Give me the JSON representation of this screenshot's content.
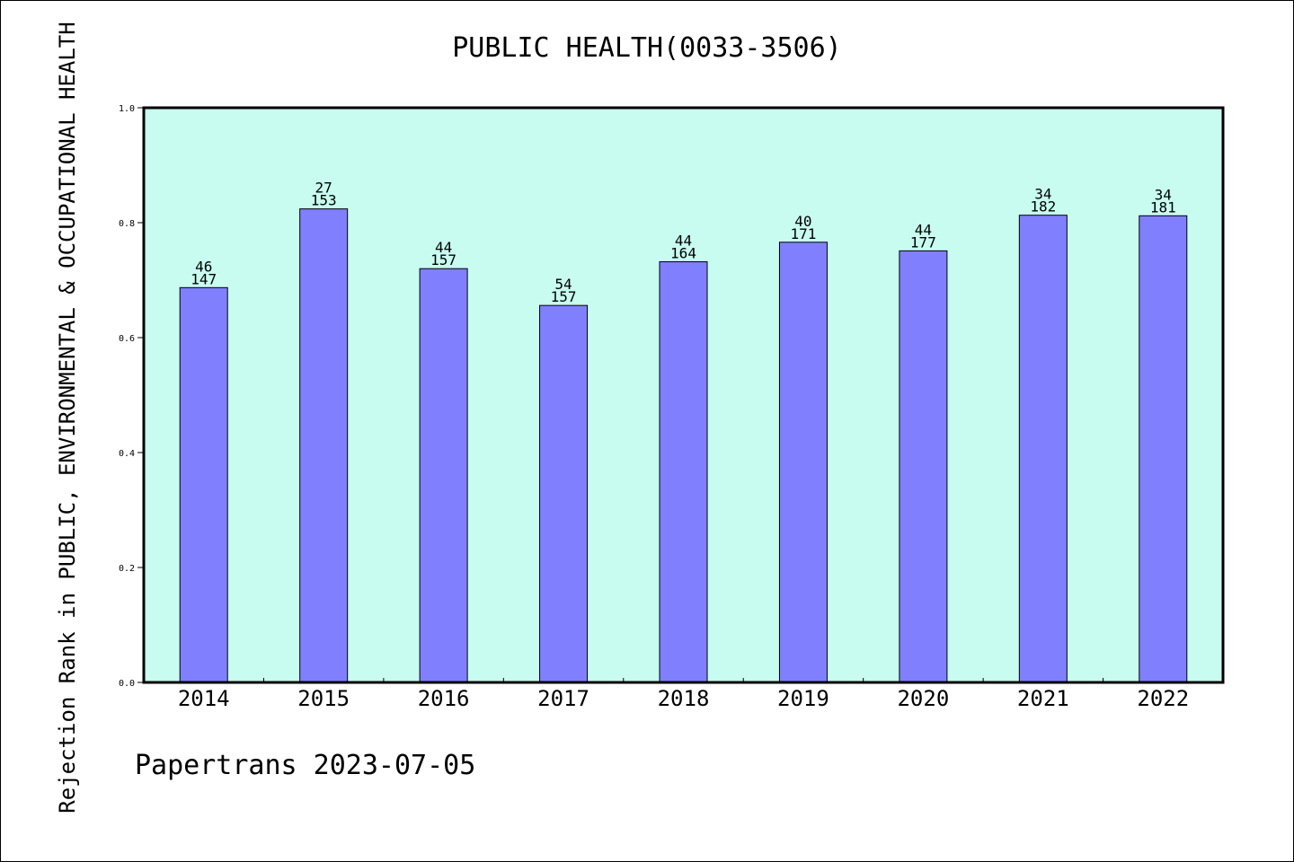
{
  "chart_data": {
    "type": "bar",
    "title": "PUBLIC HEALTH(0033-3506)",
    "ylabel": "Rejection Rank in PUBLIC, ENVIRONMENTAL & OCCUPATIONAL HEALTH",
    "xlabel": "",
    "categories": [
      "2014",
      "2015",
      "2016",
      "2017",
      "2018",
      "2019",
      "2020",
      "2021",
      "2022"
    ],
    "values": [
      0.687,
      0.824,
      0.72,
      0.656,
      0.732,
      0.766,
      0.751,
      0.813,
      0.812
    ],
    "label_top": [
      "46",
      "27",
      "44",
      "54",
      "44",
      "40",
      "44",
      "34",
      "34"
    ],
    "label_bottom": [
      "147",
      "153",
      "157",
      "157",
      "164",
      "171",
      "177",
      "182",
      "181"
    ],
    "ylim": [
      0,
      1.0
    ],
    "yticks": [
      "0.0",
      "0.2",
      "0.4",
      "0.6",
      "0.8",
      "1.0"
    ],
    "grid": false,
    "colors": {
      "plot_background": "#c8fcf0",
      "bar_fill": "#8080ff",
      "bar_stroke": "#000000"
    }
  },
  "footer": "Papertrans 2023-07-05"
}
